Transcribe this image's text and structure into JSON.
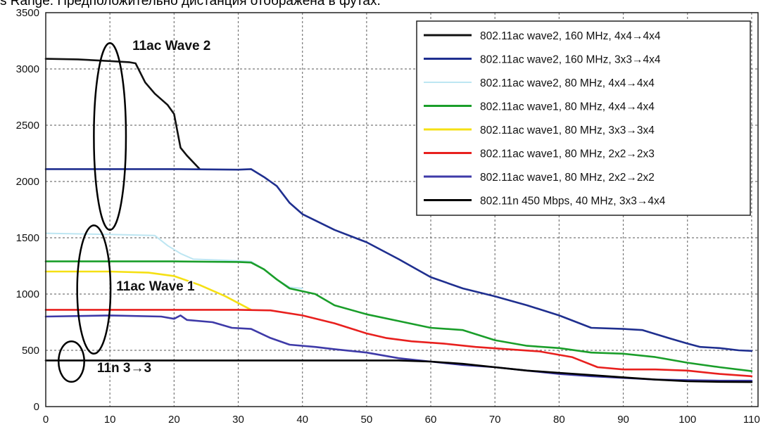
{
  "caption": "s Range. Предположительно дистанция отображена в футах.",
  "chart_data": {
    "type": "line",
    "x_ticks": [
      0,
      10,
      20,
      30,
      40,
      50,
      60,
      70,
      80,
      90,
      100,
      110
    ],
    "y_ticks": [
      0,
      500,
      1000,
      1500,
      2000,
      2500,
      3000,
      3500
    ],
    "xlim": [
      0,
      111
    ],
    "ylim": [
      0,
      3500
    ],
    "grid": true,
    "legend_position": "top-right",
    "series": [
      {
        "name": "802.11ac wave2, 160 MHz, 4x4→4x4",
        "color": "#111111",
        "points": [
          [
            0,
            3090
          ],
          [
            5,
            3085
          ],
          [
            10,
            3070
          ],
          [
            13,
            3060
          ],
          [
            14,
            3050
          ],
          [
            15.5,
            2880
          ],
          [
            17,
            2780
          ],
          [
            19,
            2680
          ],
          [
            20,
            2600
          ],
          [
            21,
            2300
          ],
          [
            22,
            2230
          ],
          [
            24,
            2110
          ]
        ]
      },
      {
        "name": "802.11ac wave2, 160 MHz, 3x3→4x4",
        "color": "#1f2f8f",
        "points": [
          [
            0,
            2110
          ],
          [
            10,
            2110
          ],
          [
            20,
            2110
          ],
          [
            30,
            2105
          ],
          [
            32,
            2110
          ],
          [
            34,
            2040
          ],
          [
            36,
            1960
          ],
          [
            38,
            1810
          ],
          [
            40,
            1710
          ],
          [
            45,
            1570
          ],
          [
            50,
            1460
          ],
          [
            55,
            1310
          ],
          [
            60,
            1150
          ],
          [
            65,
            1050
          ],
          [
            70,
            980
          ],
          [
            75,
            900
          ],
          [
            80,
            810
          ],
          [
            85,
            700
          ],
          [
            90,
            690
          ],
          [
            93,
            680
          ],
          [
            97,
            610
          ],
          [
            100,
            560
          ],
          [
            102,
            530
          ],
          [
            105,
            520
          ],
          [
            108,
            500
          ],
          [
            110,
            495
          ]
        ]
      },
      {
        "name": "802.11ac wave2, 80 MHz, 4x4→4x4",
        "color": "#bde6f2",
        "points": [
          [
            0,
            1540
          ],
          [
            10,
            1530
          ],
          [
            17,
            1520
          ],
          [
            19,
            1430
          ],
          [
            21,
            1360
          ],
          [
            23,
            1310
          ],
          [
            28,
            1300
          ],
          [
            32,
            1290
          ],
          [
            34,
            1220
          ],
          [
            36,
            1130
          ],
          [
            38,
            1060
          ],
          [
            40,
            1050
          ]
        ]
      },
      {
        "name": "802.11ac wave1, 80 MHz, 4x4→4x4",
        "color": "#1a9e2a",
        "points": [
          [
            0,
            1290
          ],
          [
            10,
            1290
          ],
          [
            20,
            1290
          ],
          [
            30,
            1285
          ],
          [
            32,
            1280
          ],
          [
            34,
            1220
          ],
          [
            36,
            1130
          ],
          [
            38,
            1050
          ],
          [
            42,
            1000
          ],
          [
            45,
            900
          ],
          [
            50,
            820
          ],
          [
            55,
            760
          ],
          [
            60,
            700
          ],
          [
            65,
            680
          ],
          [
            70,
            590
          ],
          [
            75,
            540
          ],
          [
            80,
            520
          ],
          [
            85,
            480
          ],
          [
            90,
            470
          ],
          [
            95,
            440
          ],
          [
            100,
            390
          ],
          [
            105,
            350
          ],
          [
            110,
            315
          ]
        ]
      },
      {
        "name": "802.11ac wave1, 80 MHz, 3x3→3x4",
        "color": "#f5e014",
        "points": [
          [
            0,
            1200
          ],
          [
            10,
            1200
          ],
          [
            16,
            1190
          ],
          [
            20,
            1160
          ],
          [
            24,
            1080
          ],
          [
            28,
            980
          ],
          [
            30,
            920
          ],
          [
            32,
            860
          ]
        ]
      },
      {
        "name": "802.11ac wave1, 80 MHz, 2x2→2x3",
        "color": "#e8201e",
        "points": [
          [
            0,
            860
          ],
          [
            10,
            860
          ],
          [
            20,
            860
          ],
          [
            30,
            860
          ],
          [
            35,
            855
          ],
          [
            40,
            810
          ],
          [
            45,
            740
          ],
          [
            50,
            650
          ],
          [
            53,
            610
          ],
          [
            57,
            580
          ],
          [
            62,
            560
          ],
          [
            67,
            530
          ],
          [
            72,
            510
          ],
          [
            77,
            490
          ],
          [
            82,
            440
          ],
          [
            86,
            350
          ],
          [
            90,
            330
          ],
          [
            95,
            330
          ],
          [
            100,
            320
          ],
          [
            105,
            290
          ],
          [
            110,
            270
          ]
        ]
      },
      {
        "name": "802.11ac wave1, 80 MHz, 2x2→2x2",
        "color": "#3e3aa8",
        "points": [
          [
            0,
            800
          ],
          [
            10,
            810
          ],
          [
            18,
            800
          ],
          [
            20,
            780
          ],
          [
            21,
            810
          ],
          [
            22,
            770
          ],
          [
            26,
            750
          ],
          [
            29,
            700
          ],
          [
            32,
            690
          ],
          [
            35,
            610
          ],
          [
            38,
            550
          ],
          [
            42,
            530
          ],
          [
            45,
            510
          ],
          [
            50,
            480
          ],
          [
            55,
            430
          ],
          [
            60,
            400
          ],
          [
            65,
            370
          ],
          [
            70,
            350
          ],
          [
            75,
            320
          ],
          [
            80,
            290
          ],
          [
            85,
            270
          ],
          [
            90,
            255
          ],
          [
            95,
            240
          ],
          [
            100,
            235
          ],
          [
            105,
            230
          ],
          [
            110,
            230
          ]
        ]
      },
      {
        "name": "802.11n 450 Mbps, 40 MHz, 3x3→4x4",
        "color": "#000000",
        "points": [
          [
            0,
            410
          ],
          [
            10,
            410
          ],
          [
            20,
            410
          ],
          [
            30,
            410
          ],
          [
            40,
            410
          ],
          [
            50,
            410
          ],
          [
            55,
            410
          ],
          [
            60,
            400
          ],
          [
            65,
            380
          ],
          [
            70,
            350
          ],
          [
            75,
            320
          ],
          [
            80,
            300
          ],
          [
            85,
            280
          ],
          [
            90,
            260
          ],
          [
            95,
            240
          ],
          [
            100,
            225
          ],
          [
            105,
            220
          ],
          [
            110,
            218
          ]
        ]
      }
    ],
    "annotations": [
      {
        "text": "11ac Wave 2",
        "ellipse": {
          "cx": 10,
          "cy": 2400,
          "rx": 2.5,
          "ry": 830
        },
        "label_at": [
          13.5,
          3170
        ]
      },
      {
        "text": "11ac Wave 1",
        "ellipse": {
          "cx": 7.5,
          "cy": 1040,
          "rx": 2.6,
          "ry": 570
        },
        "label_at": [
          11,
          1030
        ]
      },
      {
        "text": "11n 3→3",
        "ellipse": {
          "cx": 4,
          "cy": 400,
          "rx": 2,
          "ry": 180
        },
        "label_at": [
          8,
          305
        ]
      }
    ]
  }
}
